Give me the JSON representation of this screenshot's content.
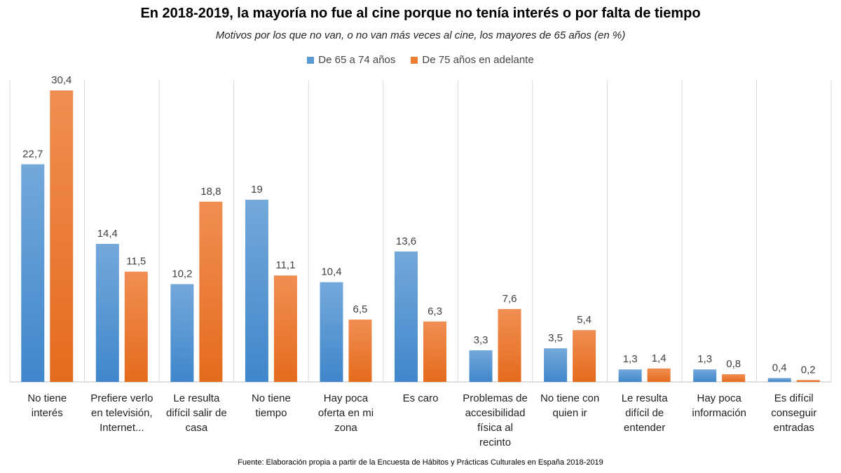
{
  "chart_data": {
    "type": "bar",
    "title": "En 2018-2019, la mayoría no fue al cine porque no tenía interés o por falta de tiempo",
    "subtitle": "Motivos por los que no van, o no van más veces al cine, los mayores de 65 años (en %)",
    "categories": [
      [
        "No tiene",
        "interés"
      ],
      [
        "Prefiere verlo",
        "en televisión,",
        "Internet..."
      ],
      [
        "Le resulta",
        "difícil salir de",
        "casa"
      ],
      [
        "No tiene",
        "tiempo"
      ],
      [
        "Hay poca",
        "oferta en mi",
        "zona"
      ],
      [
        "Es caro"
      ],
      [
        "Problemas de",
        "accesibilidad",
        "física al",
        "recinto"
      ],
      [
        "No tiene con",
        "quien  ir"
      ],
      [
        "Le resulta",
        "difícil de",
        "entender"
      ],
      [
        "Hay poca",
        "información"
      ],
      [
        "Es difícil",
        "conseguir",
        "entradas"
      ]
    ],
    "series": [
      {
        "name": "De 65 a 74 años",
        "color": "#5b9bd5",
        "values": [
          22.7,
          14.4,
          10.2,
          19,
          10.4,
          13.6,
          3.3,
          3.5,
          1.3,
          1.3,
          0.4
        ],
        "labels": [
          "22,7",
          "14,4",
          "10,2",
          "19",
          "10,4",
          "13,6",
          "3,3",
          "3,5",
          "1,3",
          "1,3",
          "0,4"
        ]
      },
      {
        "name": "De 75 años en adelante",
        "color": "#ed7d31",
        "values": [
          30.4,
          11.5,
          18.8,
          11.1,
          6.5,
          6.3,
          7.6,
          5.4,
          1.4,
          0.8,
          0.2
        ],
        "labels": [
          "30,4",
          "11,5",
          "18,8",
          "11,1",
          "6,5",
          "6,3",
          "7,6",
          "5,4",
          "1,4",
          "0,8",
          "0,2"
        ]
      }
    ],
    "ylim": [
      0,
      31.5
    ],
    "legend_position": "top-center"
  },
  "source": "Fuente: Elaboración propia a partir de la Encuesta de Hábitos y Prácticas Culturales en España 2018-2019"
}
